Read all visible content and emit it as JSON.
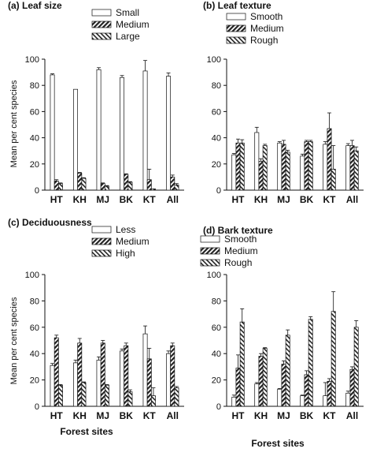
{
  "figure": {
    "ylabel": "Mean per cent species",
    "xlabel": "Forest sites"
  },
  "chart_data": [
    {
      "type": "bar",
      "title": "(a) Leaf size",
      "xlabel": "",
      "ylabel": "Mean per cent species",
      "ylim": [
        0,
        100
      ],
      "yticks": [
        0,
        20,
        40,
        60,
        80,
        100
      ],
      "categories": [
        "HT",
        "KH",
        "MJ",
        "BK",
        "KT",
        "All"
      ],
      "legend_position": "top-center",
      "series": [
        {
          "name": "Small",
          "values": [
            88,
            77,
            92,
            86,
            91,
            87
          ],
          "errors": [
            0.8,
            0,
            1.5,
            1.5,
            8,
            2.5
          ]
        },
        {
          "name": "Medium",
          "values": [
            7,
            13,
            5,
            12,
            8,
            10
          ],
          "errors": [
            1,
            0.5,
            0.5,
            0.5,
            8,
            1.5
          ]
        },
        {
          "name": "Large",
          "values": [
            5,
            9,
            3,
            6,
            1,
            4
          ],
          "errors": [
            0.5,
            0.5,
            0.5,
            0.5,
            0,
            1
          ]
        }
      ]
    },
    {
      "type": "bar",
      "title": "(b) Leaf texture",
      "xlabel": "",
      "ylabel": "",
      "ylim": [
        0,
        100
      ],
      "yticks": [
        0,
        20,
        40,
        60,
        80,
        100
      ],
      "categories": [
        "HT",
        "KH",
        "MJ",
        "BK",
        "KT",
        "All"
      ],
      "legend_position": "top-center",
      "series": [
        {
          "name": "Smooth",
          "values": [
            27,
            44,
            36,
            26,
            35,
            34
          ],
          "errors": [
            1,
            4,
            1,
            1.5,
            2,
            1.5
          ]
        },
        {
          "name": "Medium",
          "values": [
            36,
            22,
            35,
            37,
            47,
            34
          ],
          "errors": [
            3,
            2,
            3,
            1,
            12,
            4
          ]
        },
        {
          "name": "Rough",
          "values": [
            36,
            34,
            29,
            37,
            16,
            30
          ],
          "errors": [
            2.5,
            1,
            1.5,
            1,
            18,
            3
          ]
        }
      ]
    },
    {
      "type": "bar",
      "title": "(c) Deciduousness",
      "xlabel": "Forest sites",
      "ylabel": "Mean per cent species",
      "ylim": [
        0,
        100
      ],
      "yticks": [
        0,
        20,
        40,
        60,
        80,
        100
      ],
      "categories": [
        "HT",
        "KH",
        "MJ",
        "BK",
        "KT",
        "All"
      ],
      "legend_position": "top-center",
      "series": [
        {
          "name": "Less",
          "values": [
            31,
            33,
            35,
            42,
            55,
            40
          ],
          "errors": [
            1.5,
            2,
            2.5,
            1.5,
            6,
            2
          ]
        },
        {
          "name": "Medium",
          "values": [
            52,
            48,
            48,
            46,
            36,
            46
          ],
          "errors": [
            2,
            3.5,
            2,
            2,
            8,
            2
          ]
        },
        {
          "name": "High",
          "values": [
            16,
            18,
            16,
            11,
            8,
            14
          ],
          "errors": [
            0.5,
            0.5,
            0.5,
            1.5,
            6,
            1
          ]
        }
      ]
    },
    {
      "type": "bar",
      "title": "(d) Bark texture",
      "xlabel": "Forest sites",
      "ylabel": "",
      "ylim": [
        0,
        100
      ],
      "yticks": [
        0,
        20,
        40,
        60,
        80,
        100
      ],
      "categories": [
        "HT",
        "KH",
        "MJ",
        "BK",
        "KT",
        "All"
      ],
      "legend_position": "top-center",
      "series": [
        {
          "name": "Smooth",
          "values": [
            7,
            17,
            13,
            8,
            8,
            10
          ],
          "errors": [
            1.5,
            1,
            0.5,
            0.5,
            10,
            1.5
          ]
        },
        {
          "name": "Medium",
          "values": [
            29,
            38,
            32,
            24,
            19,
            28
          ],
          "errors": [
            10,
            2,
            2.5,
            3,
            2,
            2
          ]
        },
        {
          "name": "Rough",
          "values": [
            64,
            44,
            54,
            66,
            72,
            60
          ],
          "errors": [
            10,
            0.5,
            4,
            2,
            15,
            5
          ]
        }
      ]
    }
  ]
}
